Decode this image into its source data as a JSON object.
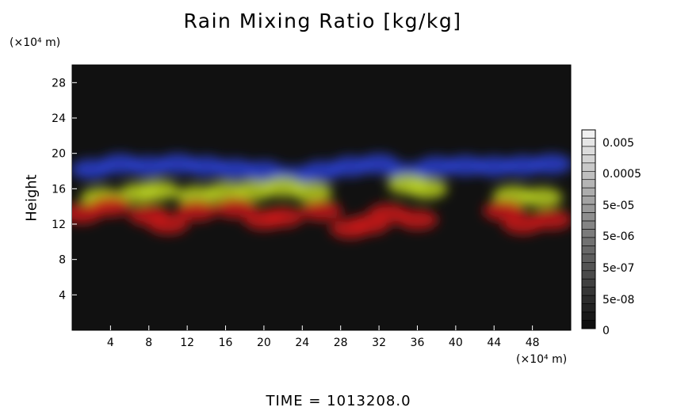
{
  "chart_data": {
    "type": "heatmap",
    "title": "Rain Mixing Ratio [kg/kg]",
    "ylabel": "Height",
    "y_unit": "(×10⁴ m)",
    "x_unit": "(×10⁴ m)",
    "xlim": [
      0,
      52
    ],
    "ylim": [
      0,
      30
    ],
    "x_ticks": [
      4,
      8,
      12,
      16,
      20,
      24,
      28,
      32,
      36,
      40,
      44,
      48
    ],
    "y_ticks": [
      4,
      8,
      12,
      16,
      20,
      24,
      28
    ],
    "colorbar": {
      "labels": [
        "0.005",
        "0.0005",
        "5e-05",
        "5e-06",
        "5e-07",
        "5e-08",
        "0"
      ]
    },
    "background_color": "#111111",
    "layers": [
      {
        "color": "#2a3fd0",
        "cells": [
          [
            2,
            18.2
          ],
          [
            5,
            18.8
          ],
          [
            8,
            18.5
          ],
          [
            11,
            18.8
          ],
          [
            14,
            18.5
          ],
          [
            17,
            18.2
          ],
          [
            20,
            18.0
          ],
          [
            23,
            17.4
          ],
          [
            26,
            18.0
          ],
          [
            29,
            18.5
          ],
          [
            32,
            18.8
          ],
          [
            35,
            17.8
          ],
          [
            38,
            18.5
          ],
          [
            41,
            18.6
          ],
          [
            44,
            18.5
          ],
          [
            47,
            18.6
          ],
          [
            50,
            18.8
          ]
        ]
      },
      {
        "color": "#b8d020",
        "cells": [
          [
            3,
            15.0
          ],
          [
            7,
            15.5
          ],
          [
            9,
            15.8
          ],
          [
            13,
            15.2
          ],
          [
            16,
            15.6
          ],
          [
            19,
            15.8
          ],
          [
            22,
            16.2
          ],
          [
            25,
            15.6
          ],
          [
            35,
            16.5
          ],
          [
            37,
            16.0
          ],
          [
            46,
            15.2
          ],
          [
            49,
            15.0
          ]
        ]
      },
      {
        "color": "#c81818",
        "cells": [
          [
            1,
            13.2
          ],
          [
            4,
            14.0
          ],
          [
            8,
            13.0
          ],
          [
            10,
            12.0
          ],
          [
            13,
            13.5
          ],
          [
            17,
            13.8
          ],
          [
            20,
            12.5
          ],
          [
            22,
            12.8
          ],
          [
            26,
            13.5
          ],
          [
            29,
            11.5
          ],
          [
            31,
            12.0
          ],
          [
            33,
            13.2
          ],
          [
            36,
            12.5
          ],
          [
            45,
            13.5
          ],
          [
            47,
            12.0
          ],
          [
            50,
            12.5
          ]
        ]
      }
    ]
  },
  "time_label": "TIME  =  1013208.0"
}
